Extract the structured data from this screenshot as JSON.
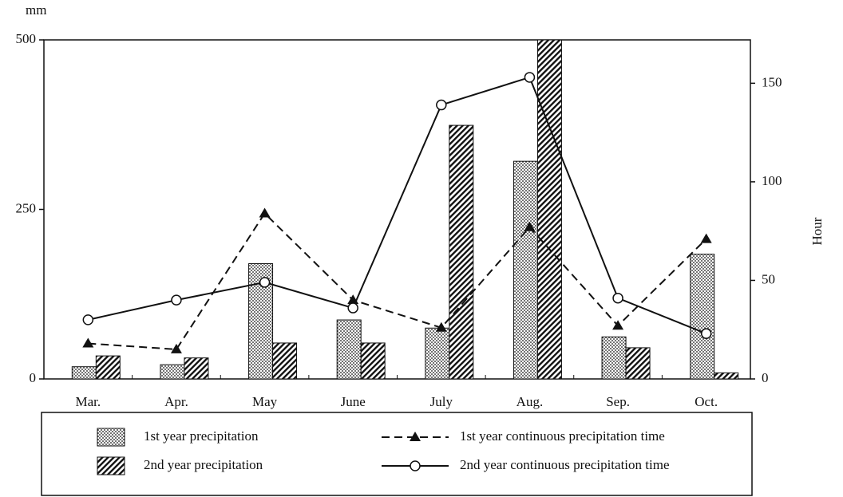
{
  "chart_data": {
    "type": "bar-line",
    "y_label": "mm",
    "y2_label": "Hour",
    "categories": [
      "Mar.",
      "Apr.",
      "May",
      "June",
      "July",
      "Aug.",
      "Sep.",
      "Oct."
    ],
    "ylim": [
      0,
      500
    ],
    "yticks": [
      0,
      250,
      500
    ],
    "y2lim": [
      0,
      172
    ],
    "y2ticks": [
      0,
      50,
      100,
      150
    ],
    "series": [
      {
        "name": "1st year precipitation",
        "kind": "bar",
        "pattern": "dots",
        "color": "#111",
        "values": [
          18,
          21,
          170,
          87,
          75,
          321,
          62,
          184
        ]
      },
      {
        "name": "2nd year precipitation",
        "kind": "bar",
        "pattern": "hatch",
        "color": "#111",
        "values": [
          34,
          31,
          53,
          53,
          374,
          500,
          46,
          9
        ]
      },
      {
        "name": "1st year continuous precipitation time",
        "kind": "line",
        "axis": "y2",
        "dash": "dashed",
        "marker": "triangle",
        "color": "#111",
        "values": [
          18,
          15,
          84,
          40,
          26,
          77,
          27,
          71
        ]
      },
      {
        "name": "2nd year continuous precipitation time",
        "kind": "line",
        "axis": "y2",
        "dash": "solid",
        "marker": "circle",
        "color": "#111",
        "values": [
          30,
          40,
          49,
          36,
          139,
          153,
          41,
          23
        ]
      }
    ]
  }
}
